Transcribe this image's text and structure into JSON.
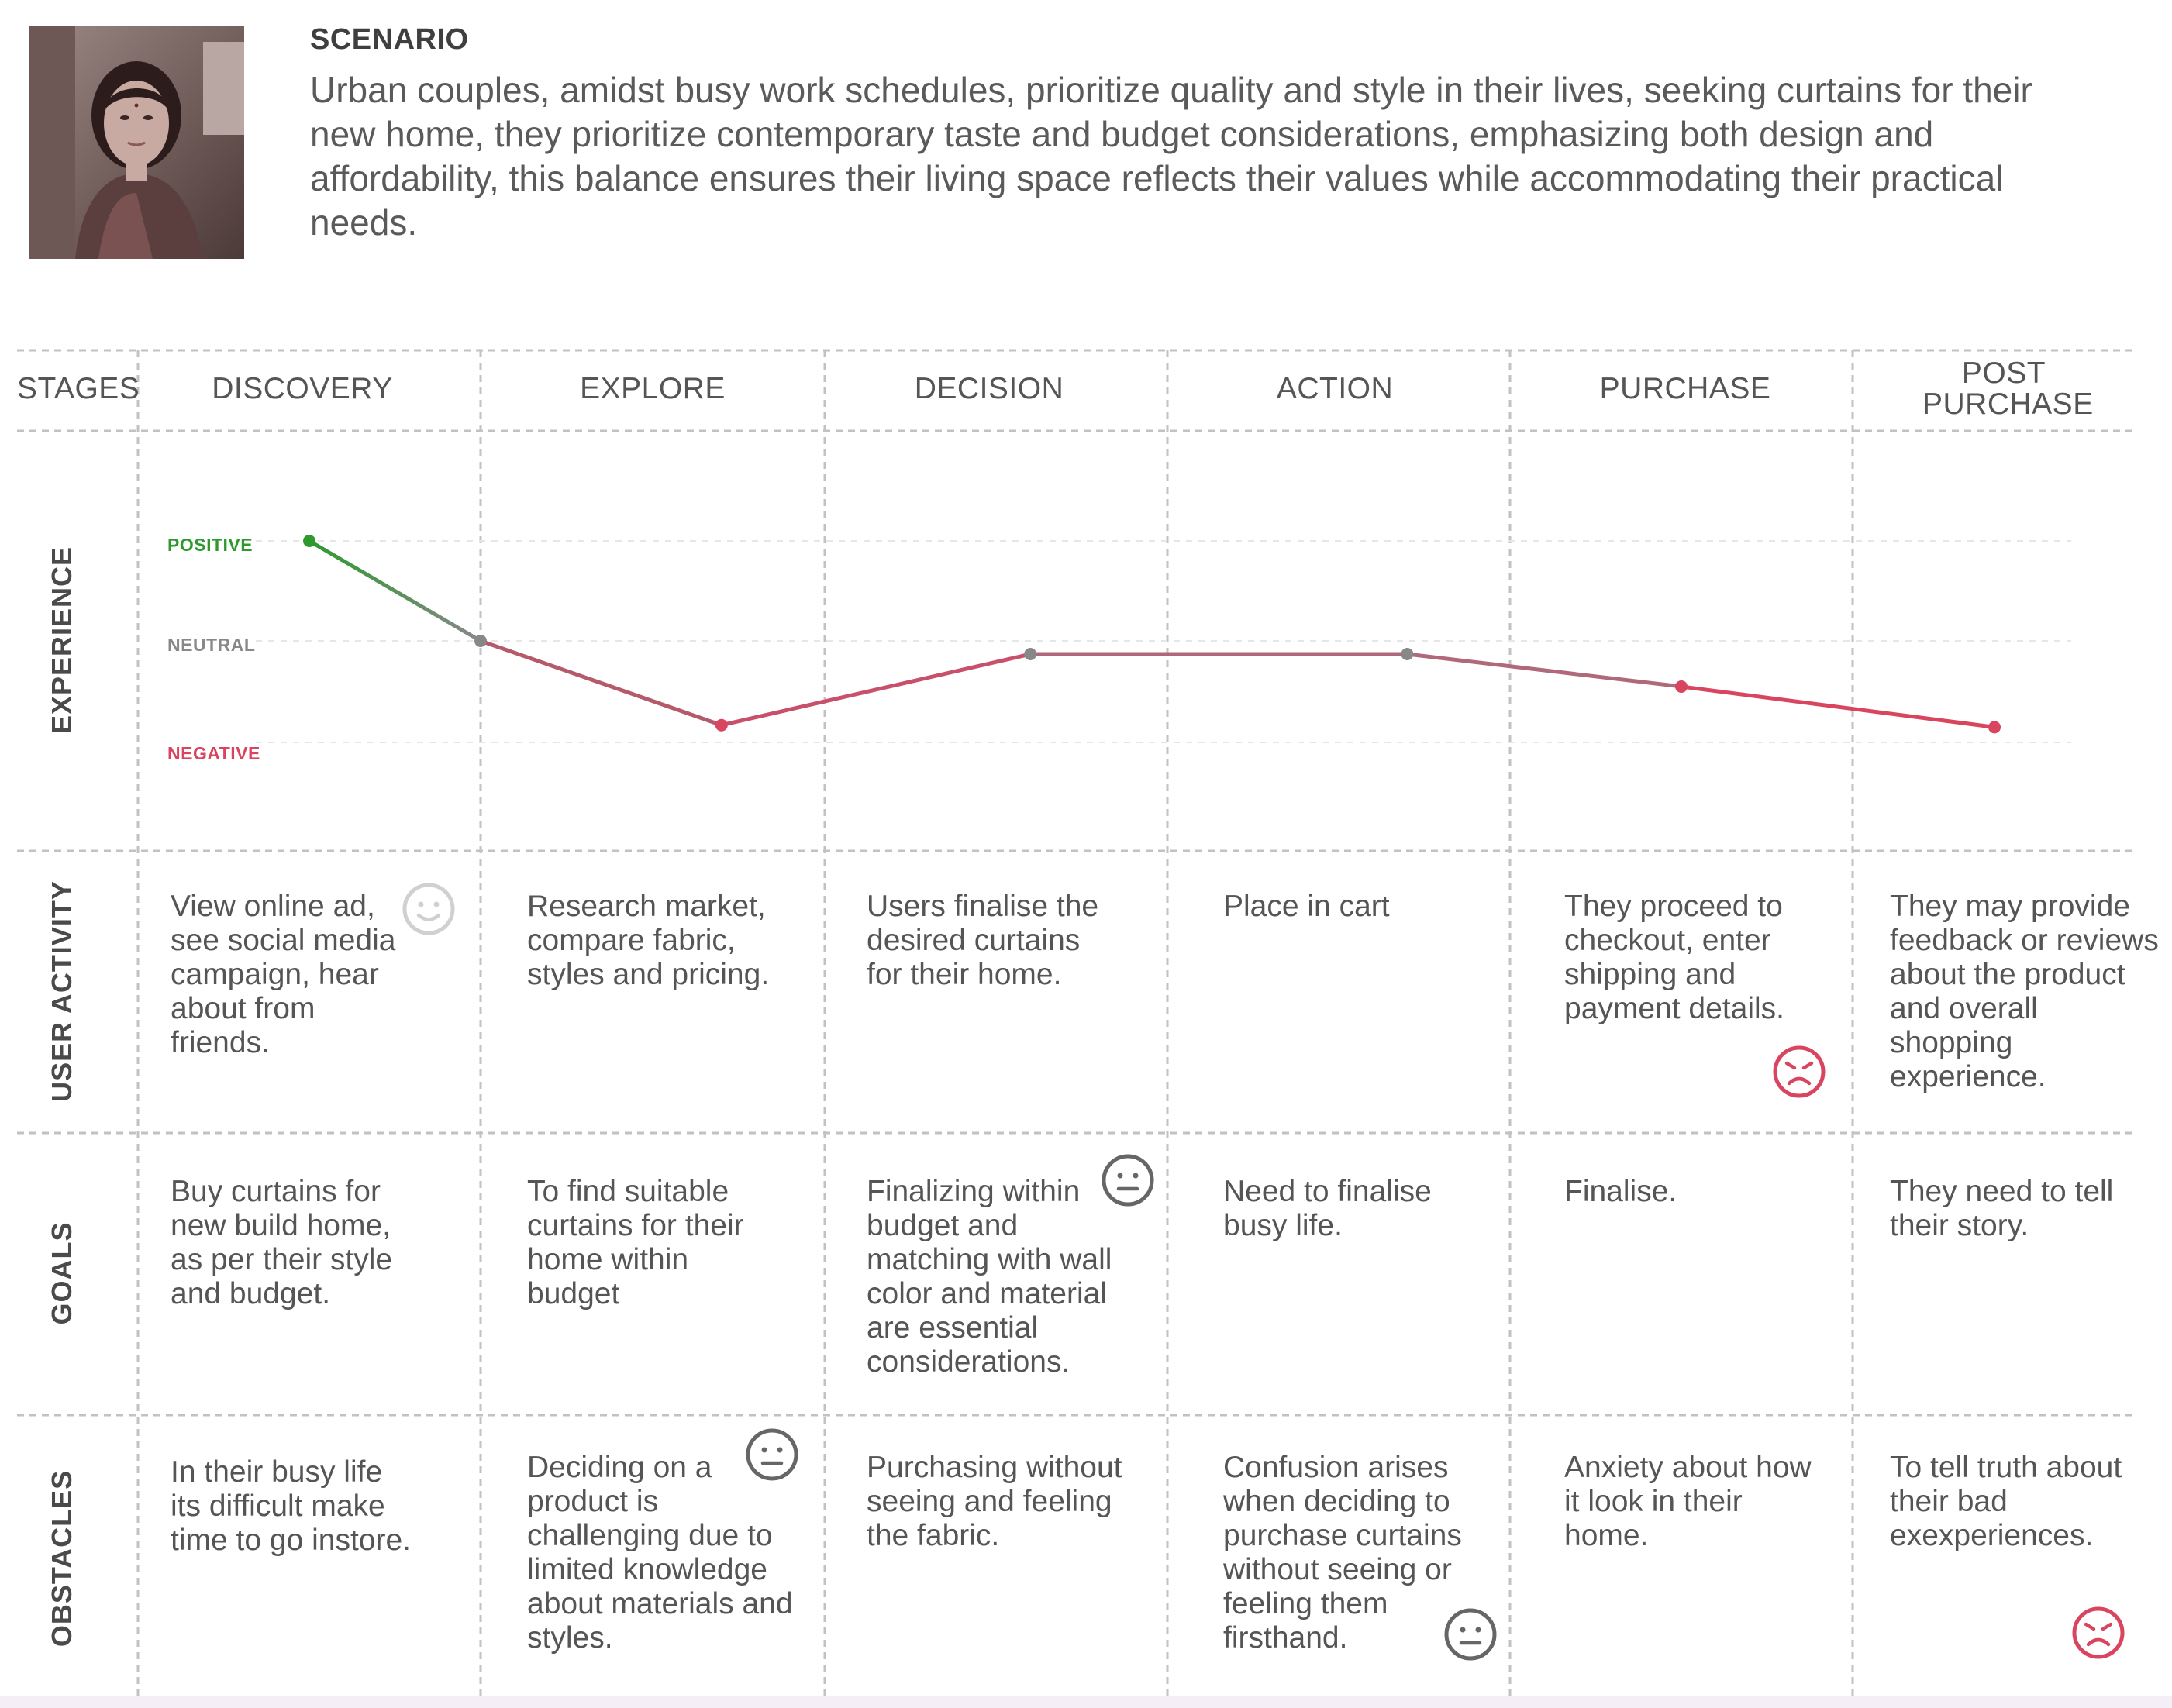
{
  "scenario": {
    "label": "SCENARIO",
    "text": "Urban couples, amidst busy work schedules, prioritize quality and style in their lives, seeking curtains for their new home, they prioritize contemporary taste and budget considerations, emphasizing both design and affordability, this balance ensures their living space reflects their values while accommodating their practical needs."
  },
  "row_labels": {
    "stages": "STAGES",
    "experience": "EXPERIENCE",
    "user_activity": "USER ACTIVITY",
    "goals": "GOALS",
    "obstacles": "OBSTACLES"
  },
  "stages": [
    {
      "name": "DISCOVERY",
      "activity": "View online ad, see social media campaign, hear about from friends.",
      "goal": "Buy curtains for new build home, as per their style and budget.",
      "obstacle": "In their busy life its difficult make time to go instore."
    },
    {
      "name": "EXPLORE",
      "activity": "Research market, compare fabric, styles and pricing.",
      "goal": "To find suitable curtains for their home within budget",
      "obstacle": "Deciding on a product is challenging due to limited knowledge about materials and styles."
    },
    {
      "name": "DECISION",
      "activity": "Users finalise the desired curtains for their home.",
      "goal": "Finalizing within budget and matching with wall color and material are essential considerations.",
      "obstacle": "Purchasing without seeing and feeling the fabric."
    },
    {
      "name": "ACTION",
      "activity": "Place in cart",
      "goal": "Need to finalise busy life.",
      "obstacle": "Confusion arises when deciding to purchase curtains without seeing or feeling them firsthand."
    },
    {
      "name": "PURCHASE",
      "activity": "They proceed to checkout, enter shipping and payment details.",
      "goal": "Finalise.",
      "obstacle": "Anxiety about how it look in their home."
    },
    {
      "name": "POST PURCHASE",
      "activity": "They may provide feedback or reviews about the product and overall shopping experience.",
      "goal": "They need to tell their story.",
      "obstacle": "To tell truth about their bad exexperiences."
    }
  ],
  "experience_levels": {
    "positive": "POSITIVE",
    "neutral": "NEUTRAL",
    "negative": "NEGATIVE"
  },
  "colors": {
    "positive": "#2e9a2e",
    "neutral": "#888888",
    "negative": "#d9455f",
    "grid": "#bdbdbd"
  },
  "chart_data": {
    "type": "line",
    "title": "",
    "xlabel": "",
    "ylabel": "EXPERIENCE",
    "scale": {
      "positive": 1,
      "neutral": 0,
      "negative": -1
    },
    "ylim": [
      -1,
      1
    ],
    "points": [
      {
        "x": 0.5,
        "y": 1.0
      },
      {
        "x": 1.0,
        "y": 0.0
      },
      {
        "x": 1.7,
        "y": -0.83
      },
      {
        "x": 2.6,
        "y": -0.13
      },
      {
        "x": 3.7,
        "y": -0.13
      },
      {
        "x": 4.5,
        "y": -0.45
      },
      {
        "x": 5.5,
        "y": -0.85
      }
    ]
  },
  "emotions": {
    "discovery_activity": "happy",
    "decision_goal": "neutral",
    "explore_obstacle": "neutral",
    "action_obstacle": "neutral",
    "purchase_activity": "sad",
    "post_purchase_obstacle": "sad"
  }
}
